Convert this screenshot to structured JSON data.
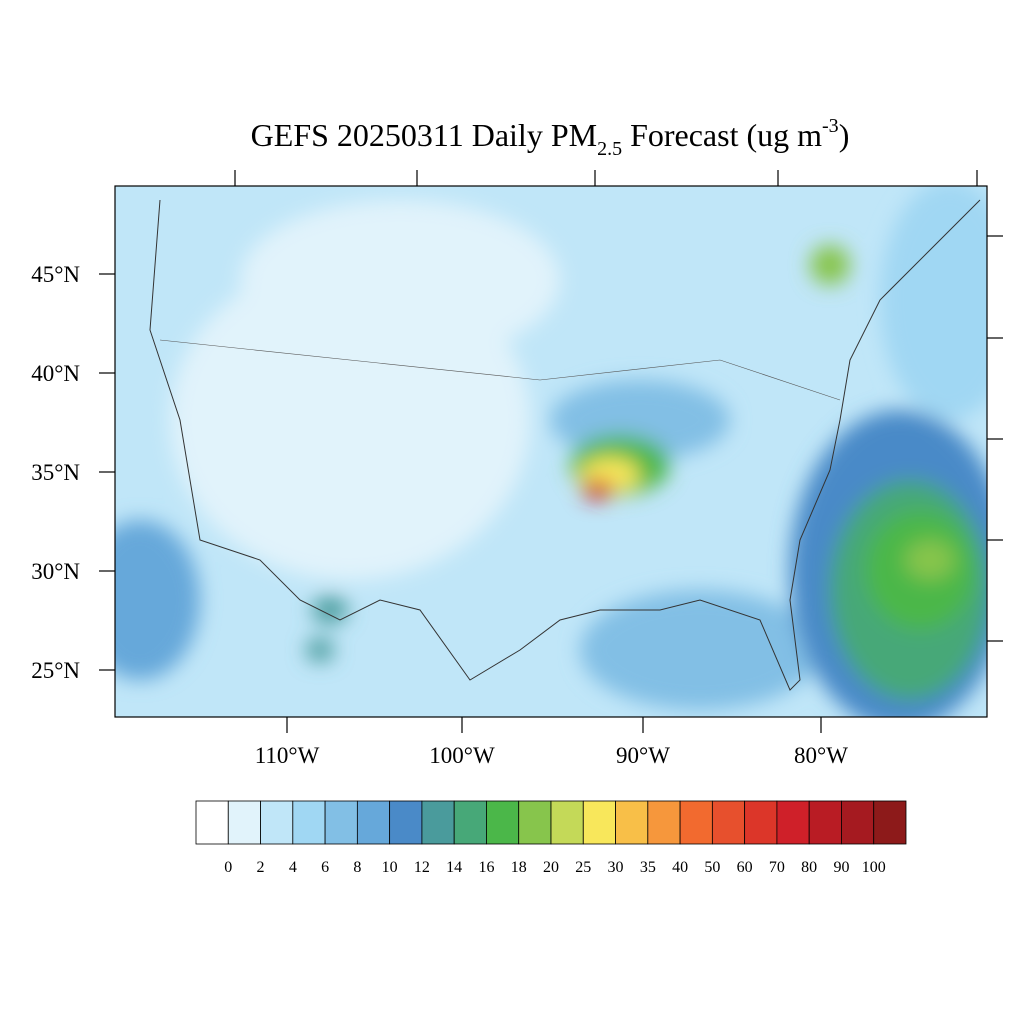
{
  "header": {
    "title": {
      "main": "GEFS 20250311 Daily PM",
      "subscript": "2.5",
      "middle": " Forecast (ug m",
      "superscript": "-3",
      "end": ")"
    }
  },
  "map": {
    "lat_labels": [
      "45°N",
      "40°N",
      "35°N",
      "30°N",
      "25°N"
    ],
    "lon_labels": [
      "110°W",
      "100°W",
      "90°W",
      "80°W"
    ]
  },
  "colorbar": {
    "colors": [
      "#ffffff",
      "#e1f3fb",
      "#c0e6f8",
      "#a0d7f3",
      "#82bfe5",
      "#66a8da",
      "#4a8ac8",
      "#4a9b9c",
      "#47a878",
      "#4bb749",
      "#87c54c",
      "#c4d958",
      "#f8e75b",
      "#f8bf48",
      "#f6973c",
      "#f26a2f",
      "#e7502d",
      "#dc3629",
      "#cf2029",
      "#b91c24",
      "#a51a20",
      "#8d1a1a"
    ],
    "labels": [
      0,
      2,
      4,
      6,
      8,
      10,
      12,
      14,
      16,
      18,
      20,
      25,
      30,
      35,
      40,
      50,
      60,
      70,
      80,
      90,
      100
    ]
  }
}
